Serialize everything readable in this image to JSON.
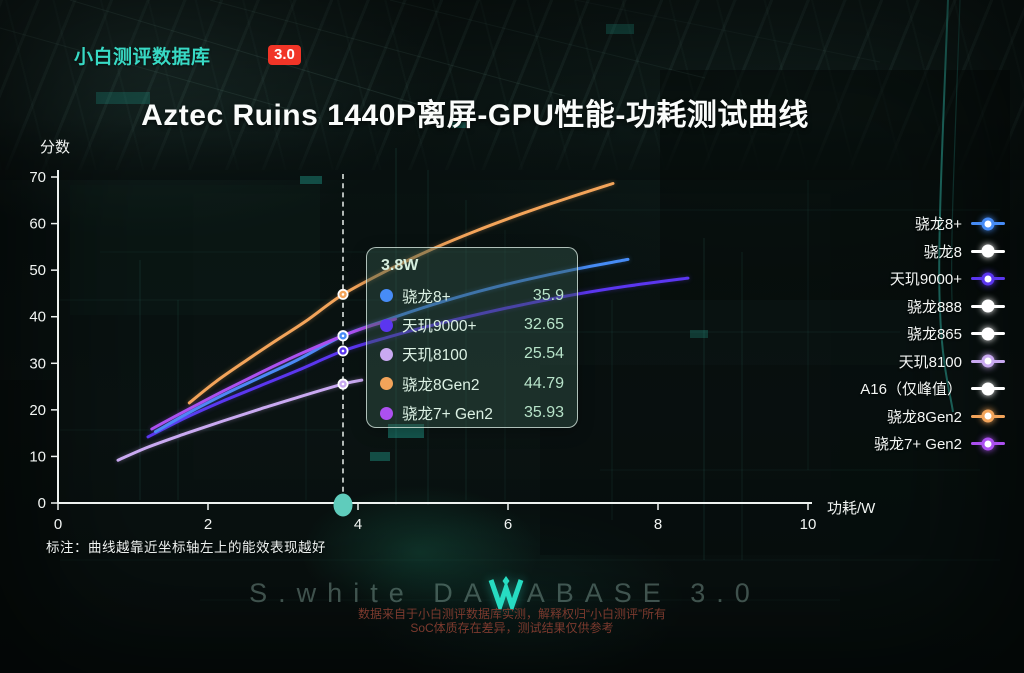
{
  "header": {
    "brand": "小白测评数据库",
    "badge": "3.0"
  },
  "title": "Aztec Ruins 1440P离屏-GPU性能-功耗测试曲线",
  "chart_data": {
    "type": "line",
    "title": "Aztec Ruins 1440P离屏-GPU性能-功耗测试曲线",
    "xlabel": "功耗/W",
    "ylabel": "分数",
    "xlim": [
      0,
      10
    ],
    "ylim": [
      0,
      70
    ],
    "xticks": [
      0,
      2,
      4,
      6,
      8,
      10
    ],
    "yticks": [
      0,
      10,
      20,
      30,
      40,
      50,
      60,
      70
    ],
    "grid": false,
    "legend_position": "right",
    "marker_x": 3.8,
    "marker_label": "3.8W",
    "series": [
      {
        "name": "天玑8100",
        "color": "#c9a9f1",
        "marker_value": 25.54,
        "points": [
          [
            0.8,
            9.2
          ],
          [
            1.2,
            12.0
          ],
          [
            1.7,
            14.9
          ],
          [
            2.2,
            17.6
          ],
          [
            2.7,
            20.2
          ],
          [
            3.2,
            22.7
          ],
          [
            3.8,
            25.54
          ],
          [
            4.05,
            26.4
          ]
        ]
      },
      {
        "name": "天玑9000+",
        "color": "#5b36f0",
        "marker_value": 32.65,
        "points": [
          [
            1.2,
            14.2
          ],
          [
            1.7,
            18.3
          ],
          [
            2.2,
            21.9
          ],
          [
            2.7,
            25.2
          ],
          [
            3.2,
            28.5
          ],
          [
            3.8,
            32.65
          ],
          [
            4.4,
            35.6
          ],
          [
            5.0,
            38.2
          ],
          [
            5.6,
            40.5
          ],
          [
            6.2,
            42.6
          ],
          [
            6.9,
            44.8
          ],
          [
            7.6,
            46.6
          ],
          [
            8.4,
            48.3
          ]
        ]
      },
      {
        "name": "骁龙8+",
        "color": "#478cf6",
        "marker_value": 35.9,
        "points": [
          [
            1.3,
            15.3
          ],
          [
            1.7,
            19.0
          ],
          [
            2.2,
            23.2
          ],
          [
            2.7,
            27.0
          ],
          [
            3.2,
            30.8
          ],
          [
            3.8,
            35.9
          ],
          [
            4.4,
            39.4
          ],
          [
            5.0,
            42.6
          ],
          [
            5.6,
            45.4
          ],
          [
            6.2,
            47.8
          ],
          [
            6.9,
            50.2
          ],
          [
            7.6,
            52.3
          ]
        ]
      },
      {
        "name": "骁龙7+ Gen2",
        "color": "#ac50f0",
        "marker_value": 35.93,
        "points": [
          [
            1.25,
            15.9
          ],
          [
            1.7,
            19.8
          ],
          [
            2.2,
            24.0
          ],
          [
            2.7,
            28.0
          ],
          [
            3.2,
            31.8
          ],
          [
            3.8,
            35.93
          ],
          [
            4.2,
            38.2
          ],
          [
            4.5,
            39.5
          ]
        ]
      },
      {
        "name": "骁龙8Gen2",
        "color": "#f3a45a",
        "marker_value": 44.79,
        "points": [
          [
            1.75,
            21.5
          ],
          [
            2.1,
            26.0
          ],
          [
            2.5,
            30.5
          ],
          [
            2.9,
            34.8
          ],
          [
            3.3,
            39.0
          ],
          [
            3.8,
            44.79
          ],
          [
            4.4,
            50.0
          ],
          [
            5.0,
            54.6
          ],
          [
            5.6,
            58.6
          ],
          [
            6.2,
            62.2
          ],
          [
            6.8,
            65.5
          ],
          [
            7.4,
            68.6
          ]
        ]
      }
    ]
  },
  "tooltip": {
    "title": "3.8W",
    "rows": [
      {
        "label": "骁龙8+",
        "value": "35.9",
        "color": "#478cf6"
      },
      {
        "label": "天玑9000+",
        "value": "32.65",
        "color": "#5b36f0"
      },
      {
        "label": "天玑8100",
        "value": "25.54",
        "color": "#c9a9f1"
      },
      {
        "label": "骁龙8Gen2",
        "value": "44.79",
        "color": "#f3a45a"
      },
      {
        "label": "骁龙7+ Gen2",
        "value": "35.93",
        "color": "#ac50f0"
      }
    ]
  },
  "legend": [
    {
      "label": "骁龙8+",
      "color": "#478cf6"
    },
    {
      "label": "骁龙8",
      "color": "#ffffff"
    },
    {
      "label": "天玑9000+",
      "color": "#5b36f0"
    },
    {
      "label": "骁龙888",
      "color": "#ffffff"
    },
    {
      "label": "骁龙865",
      "color": "#ffffff"
    },
    {
      "label": "天玑8100",
      "color": "#c9a9f1"
    },
    {
      "label": "A16（仅峰值）",
      "color": "#ffffff"
    },
    {
      "label": "骁龙8Gen2",
      "color": "#f3a45a"
    },
    {
      "label": "骁龙7+ Gen2",
      "color": "#ac50f0"
    }
  ],
  "note": "标注：曲线越靠近坐标轴左上的能效表现越好",
  "watermark": {
    "prefix": "S.white DA",
    "suffix": "ABASE 3.0"
  },
  "footer": {
    "line1": "数据来自于小白测评数据库实测，解释权归“小白测评”所有",
    "line2": "SoC体质存在差异，测试结果仅供参考"
  },
  "colors": {
    "brand": "#38d9c4",
    "badge_bg": "#f13527",
    "axis": "#eef2f0",
    "marker_dot": "#5fccbc"
  }
}
